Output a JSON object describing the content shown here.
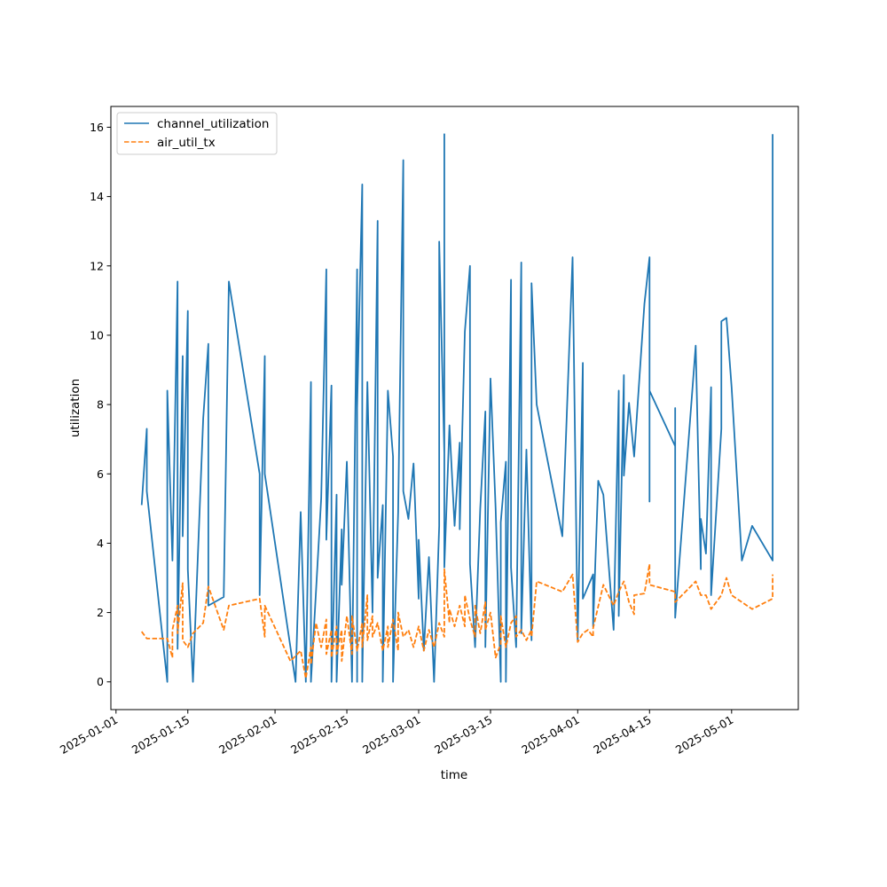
{
  "chart_data": {
    "type": "line",
    "xlabel": "time",
    "ylabel": "utilization",
    "xlim": [
      "2024-12-31",
      "2025-05-14"
    ],
    "ylim": [
      -0.8,
      16.6
    ],
    "x_ticks": [
      "2025-01-01",
      "2025-01-15",
      "2025-02-01",
      "2025-02-15",
      "2025-03-01",
      "2025-03-15",
      "2025-04-01",
      "2025-04-15",
      "2025-05-01"
    ],
    "y_ticks": [
      0,
      2,
      4,
      6,
      8,
      10,
      12,
      14,
      16
    ],
    "legend_position": "upper-left",
    "grid": false,
    "series": [
      {
        "name": "channel_utilization",
        "color": "#1f77b4",
        "dash": "solid",
        "points": [
          [
            "2025-01-06",
            5.1
          ],
          [
            "2025-01-07",
            7.3
          ],
          [
            "2025-01-07",
            5.5
          ],
          [
            "2025-01-11",
            0.0
          ],
          [
            "2025-01-11",
            8.4
          ],
          [
            "2025-01-12",
            3.5
          ],
          [
            "2025-01-13",
            11.55
          ],
          [
            "2025-01-13",
            0.95
          ],
          [
            "2025-01-14",
            9.4
          ],
          [
            "2025-01-14",
            4.2
          ],
          [
            "2025-01-15",
            10.7
          ],
          [
            "2025-01-15",
            3.25
          ],
          [
            "2025-01-16",
            0.0
          ],
          [
            "2025-01-18",
            7.6
          ],
          [
            "2025-01-19",
            9.75
          ],
          [
            "2025-01-19",
            2.2
          ],
          [
            "2025-01-22",
            2.45
          ],
          [
            "2025-01-23",
            11.55
          ],
          [
            "2025-01-29",
            6.0
          ],
          [
            "2025-01-29",
            2.5
          ],
          [
            "2025-01-30",
            9.4
          ],
          [
            "2025-01-30",
            6.0
          ],
          [
            "2025-02-05",
            0.0
          ],
          [
            "2025-02-06",
            4.9
          ],
          [
            "2025-02-07",
            0.0
          ],
          [
            "2025-02-08",
            8.65
          ],
          [
            "2025-02-08",
            0.0
          ],
          [
            "2025-02-10",
            5.3
          ],
          [
            "2025-02-11",
            11.9
          ],
          [
            "2025-02-11",
            4.1
          ],
          [
            "2025-02-12",
            8.55
          ],
          [
            "2025-02-12",
            0.0
          ],
          [
            "2025-02-13",
            5.4
          ],
          [
            "2025-02-13",
            0.0
          ],
          [
            "2025-02-14",
            4.4
          ],
          [
            "2025-02-14",
            2.8
          ],
          [
            "2025-02-15",
            6.35
          ],
          [
            "2025-02-16",
            0.0
          ],
          [
            "2025-02-17",
            11.9
          ],
          [
            "2025-02-17",
            0.0
          ],
          [
            "2025-02-17",
            7.9
          ],
          [
            "2025-02-18",
            14.35
          ],
          [
            "2025-02-18",
            0.0
          ],
          [
            "2025-02-19",
            8.65
          ],
          [
            "2025-02-20",
            2.0
          ],
          [
            "2025-02-21",
            13.3
          ],
          [
            "2025-02-21",
            3.0
          ],
          [
            "2025-02-22",
            5.1
          ],
          [
            "2025-02-22",
            0.0
          ],
          [
            "2025-02-23",
            8.4
          ],
          [
            "2025-02-24",
            6.5
          ],
          [
            "2025-02-24",
            0.0
          ],
          [
            "2025-02-25",
            4.9
          ],
          [
            "2025-02-26",
            15.05
          ],
          [
            "2025-02-26",
            5.5
          ],
          [
            "2025-02-27",
            4.7
          ],
          [
            "2025-02-28",
            6.3
          ],
          [
            "2025-03-01",
            2.4
          ],
          [
            "2025-03-01",
            4.1
          ],
          [
            "2025-03-02",
            0.9
          ],
          [
            "2025-03-03",
            3.6
          ],
          [
            "2025-03-04",
            0.0
          ],
          [
            "2025-03-05",
            4.5
          ],
          [
            "2025-03-05",
            12.7
          ],
          [
            "2025-03-06",
            6.6
          ],
          [
            "2025-03-06",
            15.8
          ],
          [
            "2025-03-06",
            3.3
          ],
          [
            "2025-03-07",
            7.4
          ],
          [
            "2025-03-08",
            4.5
          ],
          [
            "2025-03-09",
            6.9
          ],
          [
            "2025-03-09",
            4.4
          ],
          [
            "2025-03-10",
            10.1
          ],
          [
            "2025-03-11",
            12.0
          ],
          [
            "2025-03-11",
            3.4
          ],
          [
            "2025-03-12",
            1.0
          ],
          [
            "2025-03-13",
            5.0
          ],
          [
            "2025-03-14",
            7.8
          ],
          [
            "2025-03-14",
            1.0
          ],
          [
            "2025-03-15",
            8.75
          ],
          [
            "2025-03-16",
            5.0
          ],
          [
            "2025-03-17",
            0.0
          ],
          [
            "2025-03-17",
            4.6
          ],
          [
            "2025-03-18",
            6.35
          ],
          [
            "2025-03-18",
            0.0
          ],
          [
            "2025-03-19",
            11.6
          ],
          [
            "2025-03-19",
            3.3
          ],
          [
            "2025-03-20",
            1.0
          ],
          [
            "2025-03-21",
            12.1
          ],
          [
            "2025-03-21",
            1.4
          ],
          [
            "2025-03-22",
            6.7
          ],
          [
            "2025-03-23",
            1.2
          ],
          [
            "2025-03-23",
            11.5
          ],
          [
            "2025-03-24",
            8.0
          ],
          [
            "2025-03-29",
            4.2
          ],
          [
            "2025-03-31",
            12.25
          ],
          [
            "2025-04-01",
            1.2
          ],
          [
            "2025-04-02",
            9.2
          ],
          [
            "2025-04-02",
            2.4
          ],
          [
            "2025-04-04",
            3.1
          ],
          [
            "2025-04-04",
            1.6
          ],
          [
            "2025-04-05",
            5.8
          ],
          [
            "2025-04-06",
            5.4
          ],
          [
            "2025-04-08",
            1.5
          ],
          [
            "2025-04-09",
            8.4
          ],
          [
            "2025-04-09",
            1.9
          ],
          [
            "2025-04-10",
            8.85
          ],
          [
            "2025-04-10",
            5.95
          ],
          [
            "2025-04-11",
            8.05
          ],
          [
            "2025-04-12",
            6.5
          ],
          [
            "2025-04-14",
            10.9
          ],
          [
            "2025-04-15",
            12.25
          ],
          [
            "2025-04-15",
            5.2
          ],
          [
            "2025-04-15",
            8.4
          ],
          [
            "2025-04-20",
            6.8
          ],
          [
            "2025-04-20",
            7.9
          ],
          [
            "2025-04-20",
            1.85
          ],
          [
            "2025-04-24",
            9.7
          ],
          [
            "2025-04-25",
            3.25
          ],
          [
            "2025-04-25",
            4.7
          ],
          [
            "2025-04-26",
            3.7
          ],
          [
            "2025-04-27",
            8.5
          ],
          [
            "2025-04-27",
            2.5
          ],
          [
            "2025-04-29",
            7.3
          ],
          [
            "2025-04-29",
            10.4
          ],
          [
            "2025-04-30",
            10.5
          ],
          [
            "2025-05-01",
            8.5
          ],
          [
            "2025-05-03",
            3.5
          ],
          [
            "2025-05-05",
            4.5
          ],
          [
            "2025-05-09",
            3.5
          ],
          [
            "2025-05-09",
            15.8
          ]
        ]
      },
      {
        "name": "air_util_tx",
        "color": "#ff7f0e",
        "dash": "dashed",
        "points": [
          [
            "2025-01-06",
            1.45
          ],
          [
            "2025-01-07",
            1.25
          ],
          [
            "2025-01-11",
            1.25
          ],
          [
            "2025-01-12",
            0.7
          ],
          [
            "2025-01-12",
            1.5
          ],
          [
            "2025-01-13",
            2.2
          ],
          [
            "2025-01-13",
            1.4
          ],
          [
            "2025-01-14",
            2.85
          ],
          [
            "2025-01-14",
            1.2
          ],
          [
            "2025-01-15",
            1.0
          ],
          [
            "2025-01-16",
            1.4
          ],
          [
            "2025-01-18",
            1.7
          ],
          [
            "2025-01-19",
            2.75
          ],
          [
            "2025-01-22",
            1.5
          ],
          [
            "2025-01-23",
            2.2
          ],
          [
            "2025-01-29",
            2.4
          ],
          [
            "2025-01-30",
            1.3
          ],
          [
            "2025-01-30",
            2.2
          ],
          [
            "2025-02-04",
            0.6
          ],
          [
            "2025-02-06",
            0.9
          ],
          [
            "2025-02-07",
            0.1
          ],
          [
            "2025-02-08",
            1.0
          ],
          [
            "2025-02-08",
            0.5
          ],
          [
            "2025-02-09",
            1.7
          ],
          [
            "2025-02-10",
            1.0
          ],
          [
            "2025-02-11",
            1.8
          ],
          [
            "2025-02-11",
            0.8
          ],
          [
            "2025-02-12",
            1.5
          ],
          [
            "2025-02-12",
            0.7
          ],
          [
            "2025-02-13",
            1.6
          ],
          [
            "2025-02-13",
            0.8
          ],
          [
            "2025-02-14",
            1.5
          ],
          [
            "2025-02-14",
            0.6
          ],
          [
            "2025-02-15",
            1.9
          ],
          [
            "2025-02-16",
            0.8
          ],
          [
            "2025-02-16",
            1.9
          ],
          [
            "2025-02-17",
            0.9
          ],
          [
            "2025-02-18",
            1.7
          ],
          [
            "2025-02-18",
            1.0
          ],
          [
            "2025-02-19",
            2.5
          ],
          [
            "2025-02-19",
            1.2
          ],
          [
            "2025-02-20",
            1.9
          ],
          [
            "2025-02-20",
            1.3
          ],
          [
            "2025-02-21",
            1.7
          ],
          [
            "2025-02-22",
            0.9
          ],
          [
            "2025-02-23",
            1.6
          ],
          [
            "2025-02-23",
            1.0
          ],
          [
            "2025-02-24",
            1.8
          ],
          [
            "2025-02-25",
            0.9
          ],
          [
            "2025-02-25",
            2.0
          ],
          [
            "2025-02-26",
            1.3
          ],
          [
            "2025-02-27",
            1.5
          ],
          [
            "2025-02-28",
            1.0
          ],
          [
            "2025-03-01",
            1.6
          ],
          [
            "2025-03-02",
            0.9
          ],
          [
            "2025-03-03",
            1.5
          ],
          [
            "2025-03-04",
            1.0
          ],
          [
            "2025-03-05",
            1.7
          ],
          [
            "2025-03-06",
            1.3
          ],
          [
            "2025-03-06",
            3.25
          ],
          [
            "2025-03-07",
            1.7
          ],
          [
            "2025-03-07",
            2.1
          ],
          [
            "2025-03-08",
            1.6
          ],
          [
            "2025-03-09",
            2.2
          ],
          [
            "2025-03-10",
            1.6
          ],
          [
            "2025-03-10",
            2.5
          ],
          [
            "2025-03-11",
            1.8
          ],
          [
            "2025-03-12",
            1.3
          ],
          [
            "2025-03-12",
            2.2
          ],
          [
            "2025-03-13",
            1.4
          ],
          [
            "2025-03-14",
            2.3
          ],
          [
            "2025-03-14",
            1.5
          ],
          [
            "2025-03-15",
            2.0
          ],
          [
            "2025-03-16",
            0.7
          ],
          [
            "2025-03-17",
            1.1
          ],
          [
            "2025-03-17",
            1.9
          ],
          [
            "2025-03-18",
            1.0
          ],
          [
            "2025-03-19",
            1.7
          ],
          [
            "2025-03-20",
            1.9
          ],
          [
            "2025-03-20",
            1.3
          ],
          [
            "2025-03-21",
            1.5
          ],
          [
            "2025-03-22",
            1.2
          ],
          [
            "2025-03-23",
            1.5
          ],
          [
            "2025-03-23",
            1.3
          ],
          [
            "2025-03-24",
            2.9
          ],
          [
            "2025-03-29",
            2.6
          ],
          [
            "2025-03-31",
            3.1
          ],
          [
            "2025-04-01",
            1.15
          ],
          [
            "2025-04-02",
            1.4
          ],
          [
            "2025-04-03",
            1.5
          ],
          [
            "2025-04-04",
            1.3
          ],
          [
            "2025-04-04",
            1.55
          ],
          [
            "2025-04-06",
            2.8
          ],
          [
            "2025-04-08",
            2.2
          ],
          [
            "2025-04-09",
            2.6
          ],
          [
            "2025-04-10",
            2.9
          ],
          [
            "2025-04-11",
            2.3
          ],
          [
            "2025-04-12",
            1.95
          ],
          [
            "2025-04-12",
            2.5
          ],
          [
            "2025-04-14",
            2.55
          ],
          [
            "2025-04-15",
            3.4
          ],
          [
            "2025-04-15",
            2.8
          ],
          [
            "2025-04-20",
            2.6
          ],
          [
            "2025-04-20",
            2.3
          ],
          [
            "2025-04-24",
            2.9
          ],
          [
            "2025-04-25",
            2.5
          ],
          [
            "2025-04-26",
            2.5
          ],
          [
            "2025-04-27",
            2.1
          ],
          [
            "2025-04-29",
            2.5
          ],
          [
            "2025-04-30",
            3.0
          ],
          [
            "2025-05-01",
            2.5
          ],
          [
            "2025-05-05",
            2.1
          ],
          [
            "2025-05-09",
            2.4
          ],
          [
            "2025-05-09",
            3.1
          ]
        ]
      }
    ]
  }
}
